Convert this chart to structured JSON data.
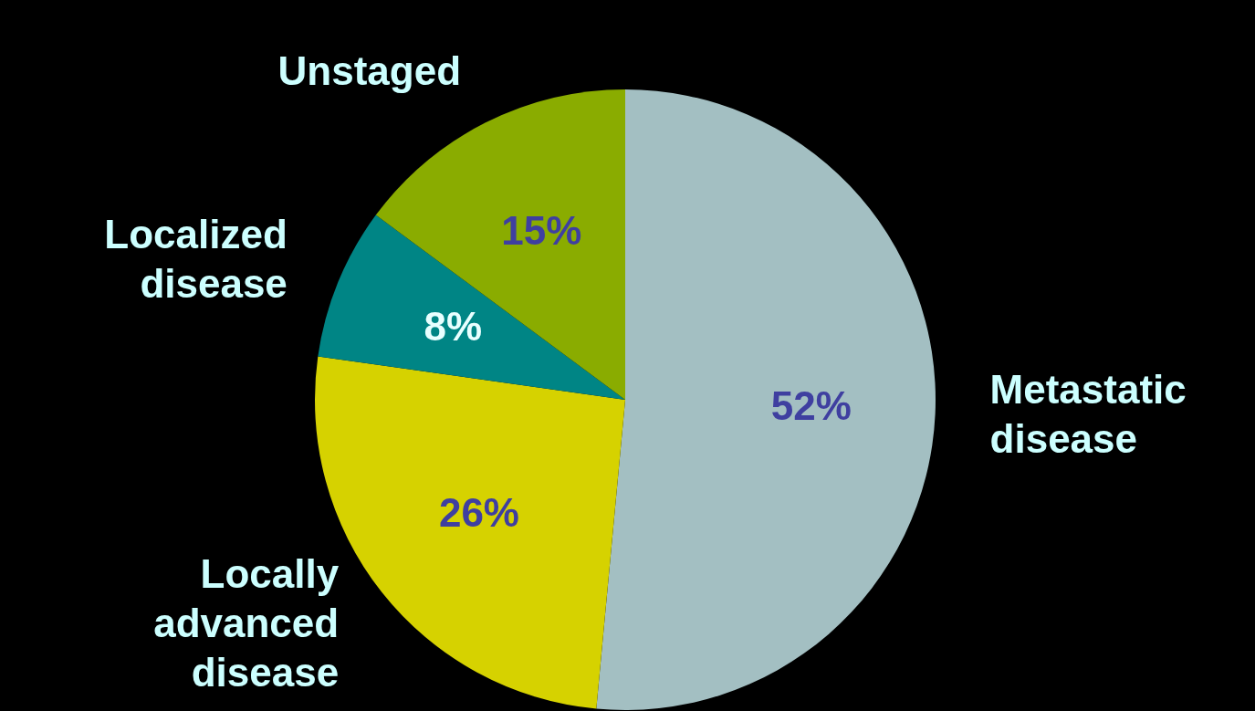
{
  "chart_data": {
    "type": "pie",
    "categories": [
      "Metastatic disease",
      "Locally advanced disease",
      "Localized disease",
      "Unstaged"
    ],
    "values": [
      52,
      26,
      8,
      15
    ],
    "colors": [
      "#a3bfc2",
      "#d6d200",
      "#008585",
      "#8aac00"
    ],
    "value_labels": [
      "52%",
      "26%",
      "8%",
      "15%"
    ],
    "legend": false
  }
}
